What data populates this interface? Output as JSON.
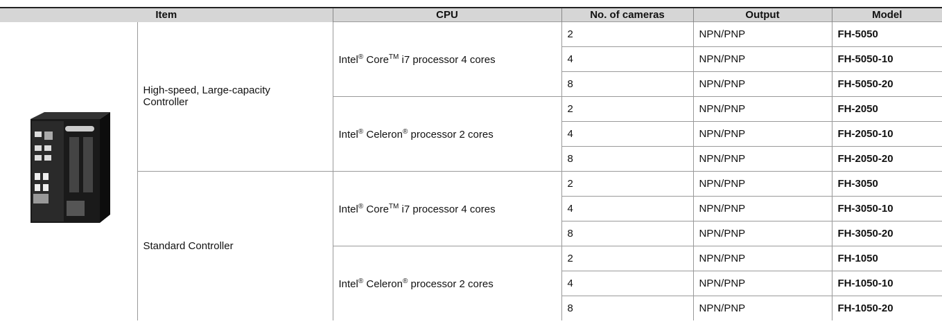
{
  "table": {
    "header": [
      "Item",
      "CPU",
      "No. of cameras",
      "Output",
      "Model"
    ],
    "groups": [
      {
        "label": "High-speed, Large-capacity Controller",
        "cpus": [
          {
            "segments": [
              {
                "text": "Intel"
              },
              {
                "text": "®",
                "sup": true
              },
              {
                "text": " Core"
              },
              {
                "text": "TM",
                "sup": true
              },
              {
                "text": " i7 processor 4 cores"
              }
            ],
            "rows": [
              [
                "2",
                "NPN/PNP",
                "FH-5050"
              ],
              [
                "4",
                "NPN/PNP",
                "FH-5050-10"
              ],
              [
                "8",
                "NPN/PNP",
                "FH-5050-20"
              ]
            ]
          },
          {
            "segments": [
              {
                "text": "Intel"
              },
              {
                "text": "®",
                "sup": true
              },
              {
                "text": " Celeron"
              },
              {
                "text": "®",
                "sup": true
              },
              {
                "text": " processor 2 cores"
              }
            ],
            "rows": [
              [
                "2",
                "NPN/PNP",
                "FH-2050"
              ],
              [
                "4",
                "NPN/PNP",
                "FH-2050-10"
              ],
              [
                "8",
                "NPN/PNP",
                "FH-2050-20"
              ]
            ]
          }
        ]
      },
      {
        "label": "Standard Controller",
        "cpus": [
          {
            "segments": [
              {
                "text": "Intel"
              },
              {
                "text": "®",
                "sup": true
              },
              {
                "text": " Core"
              },
              {
                "text": "TM",
                "sup": true
              },
              {
                "text": " i7 processor 4 cores"
              }
            ],
            "rows": [
              [
                "2",
                "NPN/PNP",
                "FH-3050"
              ],
              [
                "4",
                "NPN/PNP",
                "FH-3050-10"
              ],
              [
                "8",
                "NPN/PNP",
                "FH-3050-20"
              ]
            ]
          },
          {
            "segments": [
              {
                "text": "Intel"
              },
              {
                "text": "®",
                "sup": true
              },
              {
                "text": " Celeron"
              },
              {
                "text": "®",
                "sup": true
              },
              {
                "text": " processor 2 cores"
              }
            ],
            "rows": [
              [
                "2",
                "NPN/PNP",
                "FH-1050"
              ],
              [
                "4",
                "NPN/PNP",
                "FH-1050-10"
              ],
              [
                "8",
                "NPN/PNP",
                "FH-1050-20"
              ]
            ]
          }
        ]
      }
    ]
  }
}
